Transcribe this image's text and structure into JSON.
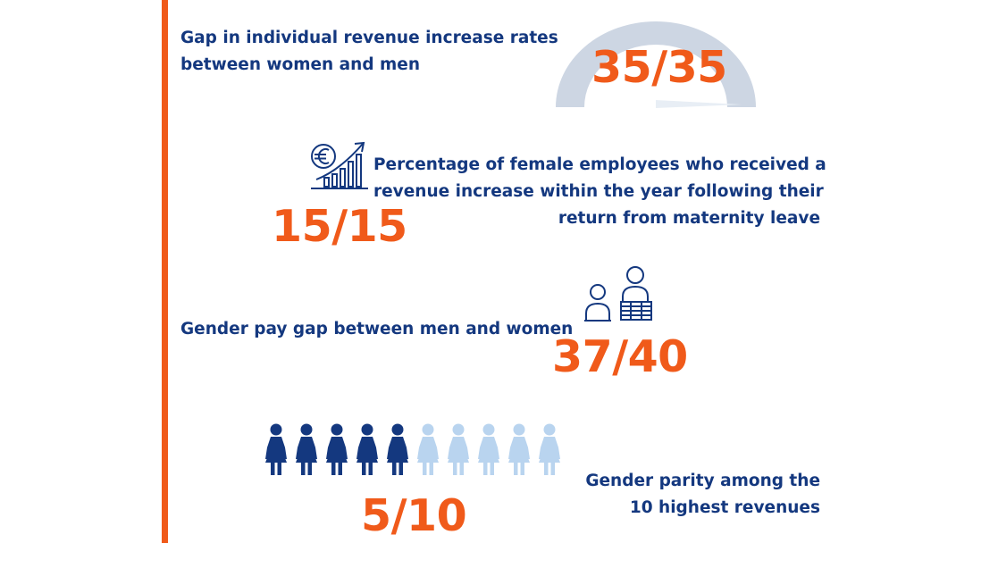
{
  "colors": {
    "accent": "#f05a1a",
    "navy": "#14387f",
    "light_blue": "#b9d4ef",
    "gauge_grey": "#cdd6e3"
  },
  "blocks": [
    {
      "label_lines": [
        "Gap in individual revenue increase rates",
        "between women and men"
      ],
      "score": "35/35",
      "icon": "gauge-icon",
      "gauge_fraction": 1.0
    },
    {
      "label_lines": [
        "Percentage of female employees who received a",
        "revenue increase within the year following their",
        "return from maternity leave"
      ],
      "score": "15/15",
      "icon": "euro-growth-chart-icon"
    },
    {
      "label_lines": [
        "Gender pay gap between men and women"
      ],
      "score": "37/40",
      "icon": "people-with-coins-icon"
    },
    {
      "label_lines": [
        "Gender parity among the",
        "10 highest revenues"
      ],
      "score": "5/10",
      "icon": "women-figures-icon",
      "women_highlighted": 5,
      "women_total": 10
    }
  ]
}
